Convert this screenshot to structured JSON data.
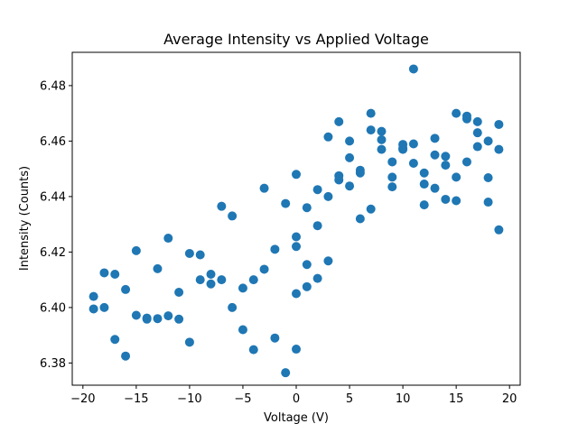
{
  "chart_data": {
    "type": "scatter",
    "title": "Average Intensity vs Applied Voltage",
    "xlabel": "Voltage (V)",
    "ylabel": "Intensity (Counts)",
    "xlim": [
      -21,
      21
    ],
    "ylim": [
      6.372,
      6.492
    ],
    "xticks": [
      -20,
      -15,
      -10,
      -5,
      0,
      5,
      10,
      15,
      20
    ],
    "yticks": [
      6.38,
      6.4,
      6.42,
      6.44,
      6.46,
      6.48
    ],
    "marker_color": "#1f77b4",
    "grid": false,
    "legend": "none",
    "points": [
      [
        -19,
        6.404
      ],
      [
        -19,
        6.3995
      ],
      [
        -18,
        6.4125
      ],
      [
        -18,
        6.4
      ],
      [
        -17,
        6.412
      ],
      [
        -17,
        6.3885
      ],
      [
        -16,
        6.4065
      ],
      [
        -16,
        6.3825
      ],
      [
        -15,
        6.4205
      ],
      [
        -15,
        6.3972
      ],
      [
        -14,
        6.3962
      ],
      [
        -14,
        6.3958
      ],
      [
        -13,
        6.414
      ],
      [
        -13,
        6.396
      ],
      [
        -12,
        6.425
      ],
      [
        -12,
        6.397
      ],
      [
        -11,
        6.4055
      ],
      [
        -11,
        6.3958
      ],
      [
        -10,
        6.4195
      ],
      [
        -10,
        6.3875
      ],
      [
        -9,
        6.419
      ],
      [
        -9,
        6.41
      ],
      [
        -8,
        6.412
      ],
      [
        -8,
        6.4085
      ],
      [
        -7,
        6.4365
      ],
      [
        -7,
        6.41
      ],
      [
        -6,
        6.433
      ],
      [
        -6,
        6.4
      ],
      [
        -5,
        6.407
      ],
      [
        -5,
        6.392
      ],
      [
        -4,
        6.41
      ],
      [
        -4,
        6.3848
      ],
      [
        -3,
        6.443
      ],
      [
        -3,
        6.4138
      ],
      [
        -2,
        6.421
      ],
      [
        -2,
        6.389
      ],
      [
        -1,
        6.4375
      ],
      [
        -1,
        6.3765
      ],
      [
        0,
        6.448
      ],
      [
        0,
        6.4255
      ],
      [
        0,
        6.422
      ],
      [
        0,
        6.405
      ],
      [
        0,
        6.385
      ],
      [
        1,
        6.436
      ],
      [
        1,
        6.4155
      ],
      [
        1,
        6.4075
      ],
      [
        2,
        6.4425
      ],
      [
        2,
        6.4295
      ],
      [
        2,
        6.4105
      ],
      [
        3,
        6.4615
      ],
      [
        3,
        6.44
      ],
      [
        3,
        6.4168
      ],
      [
        4,
        6.467
      ],
      [
        4,
        6.4475
      ],
      [
        4,
        6.446
      ],
      [
        5,
        6.46
      ],
      [
        5,
        6.454
      ],
      [
        5,
        6.4438
      ],
      [
        6,
        6.4495
      ],
      [
        6,
        6.4485
      ],
      [
        6,
        6.432
      ],
      [
        7,
        6.47
      ],
      [
        7,
        6.464
      ],
      [
        7,
        6.4355
      ],
      [
        8,
        6.4635
      ],
      [
        8,
        6.4605
      ],
      [
        8,
        6.457
      ],
      [
        9,
        6.4525
      ],
      [
        9,
        6.447
      ],
      [
        9,
        6.4435
      ],
      [
        10,
        6.4588
      ],
      [
        10,
        6.457
      ],
      [
        10,
        6.4575
      ],
      [
        11,
        6.486
      ],
      [
        11,
        6.459
      ],
      [
        11,
        6.452
      ],
      [
        12,
        6.4485
      ],
      [
        12,
        6.4445
      ],
      [
        12,
        6.437
      ],
      [
        13,
        6.461
      ],
      [
        13,
        6.455
      ],
      [
        13,
        6.443
      ],
      [
        14,
        6.4545
      ],
      [
        14,
        6.4513
      ],
      [
        14,
        6.439
      ],
      [
        15,
        6.47
      ],
      [
        15,
        6.447
      ],
      [
        15,
        6.4385
      ],
      [
        16,
        6.469
      ],
      [
        16,
        6.468
      ],
      [
        16,
        6.4525
      ],
      [
        17,
        6.467
      ],
      [
        17,
        6.463
      ],
      [
        17,
        6.458
      ],
      [
        18,
        6.46
      ],
      [
        18,
        6.4468
      ],
      [
        18,
        6.438
      ],
      [
        19,
        6.466
      ],
      [
        19,
        6.457
      ],
      [
        19,
        6.428
      ]
    ]
  }
}
